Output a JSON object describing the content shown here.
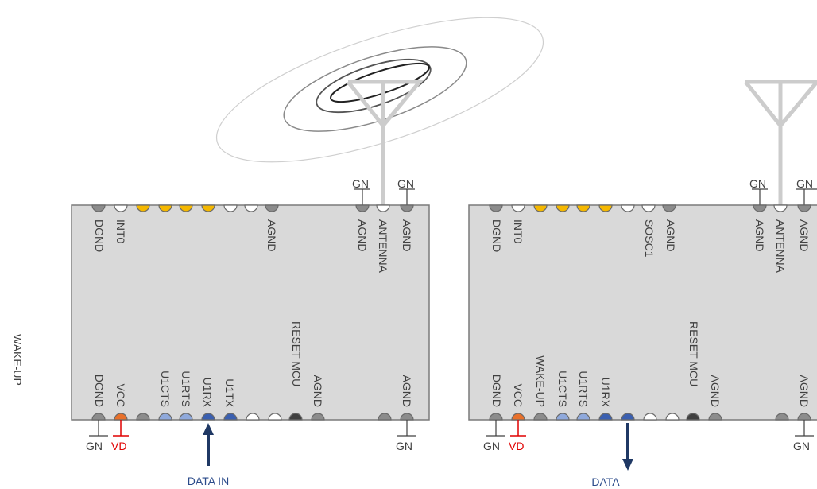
{
  "side_label": "WAKE-UP",
  "modules": [
    {
      "top_labels": [
        "DGND",
        "INT0",
        "AGND",
        "AGND",
        "ANTENNA",
        "AGND"
      ],
      "bottom_labels": [
        "DGND",
        "VCC",
        "U1CTS",
        "U1RTS",
        "U1RX",
        "U1TX",
        "RESET MCU",
        "AGND",
        "AGND"
      ],
      "ground_labels": [
        "GN",
        "GN",
        "GN",
        "GN"
      ],
      "power_label": "VD",
      "data_label": "DATA IN"
    },
    {
      "top_labels": [
        "DGND",
        "INT0",
        "SOSC1",
        "AGND",
        "AGND",
        "ANTENNA",
        "AGND"
      ],
      "bottom_labels": [
        "DGND",
        "VCC",
        "WAKE-UP",
        "U1CTS",
        "U1RTS",
        "U1RX",
        "RESET MCU",
        "AGND",
        "AGND"
      ],
      "ground_labels": [
        "GN",
        "GN",
        "GN",
        "GN"
      ],
      "power_label": "VD",
      "data_label": "DATA"
    }
  ],
  "colors": {
    "module_fill": "#d9d9d9",
    "pin_gray": "#8c8c8c",
    "pin_yellow": "#f5b800",
    "pin_orange": "#e8702a",
    "pin_lightblue": "#8fa9dc",
    "pin_blue": "#3a5fb0",
    "pin_dark": "#404040",
    "arrow": "#1f3864",
    "vd_red": "#e00000"
  }
}
